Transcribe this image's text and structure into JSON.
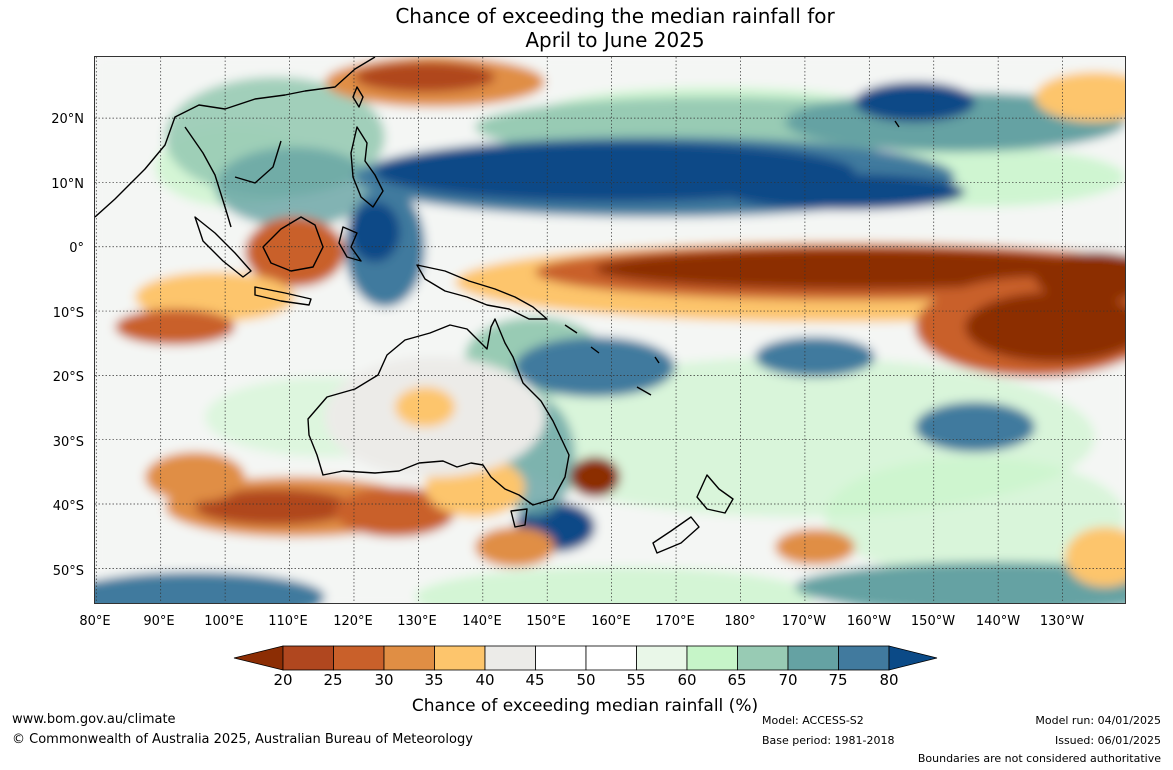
{
  "title": {
    "line1": "Chance of exceeding the median rainfall for",
    "line2": "April to June 2025"
  },
  "map": {
    "lat_labels": [
      "20°N",
      "10°N",
      "0°",
      "10°S",
      "20°S",
      "30°S",
      "40°S",
      "50°S"
    ],
    "lat_values": [
      20,
      10,
      0,
      -10,
      -20,
      -30,
      -40,
      -50
    ],
    "lon_labels": [
      "80°E",
      "90°E",
      "100°E",
      "110°E",
      "120°E",
      "130°E",
      "140°E",
      "150°E",
      "160°E",
      "170°E",
      "180°",
      "170°W",
      "160°W",
      "150°W",
      "140°W",
      "130°W"
    ],
    "lon_values": [
      80,
      90,
      100,
      110,
      120,
      130,
      140,
      150,
      160,
      170,
      180,
      190,
      200,
      210,
      220,
      230
    ],
    "lat_range": [
      -55.7,
      29.5
    ],
    "lon_range": [
      79.8,
      240
    ],
    "grid_lines": "dotted"
  },
  "colorbar": {
    "ticks": [
      "20",
      "25",
      "30",
      "35",
      "40",
      "45",
      "50",
      "55",
      "60",
      "65",
      "70",
      "75",
      "80"
    ],
    "colors": [
      "#8c2d04",
      "#b0471f",
      "#c9602a",
      "#e08e44",
      "#fdc56c",
      "#ecebe8",
      "#ffffff",
      "#ffffff",
      "#e9f7e8",
      "#c6f5c8",
      "#98cbb4",
      "#65a2a3",
      "#417a9e",
      "#0b4a87"
    ],
    "label": "Chance of exceeding median rainfall (%)"
  },
  "footer": {
    "website": "www.bom.gov.au/climate",
    "copyright": "© Commonwealth of Australia 2025, Australian Bureau of Meteorology",
    "model": "Model: ACCESS-S2",
    "base_period": "Base period: 1981-2018",
    "model_run": "Model run: 04/01/2025",
    "issued": "Issued: 06/01/2025",
    "boundaries": "Boundaries are not considered authoritative"
  }
}
